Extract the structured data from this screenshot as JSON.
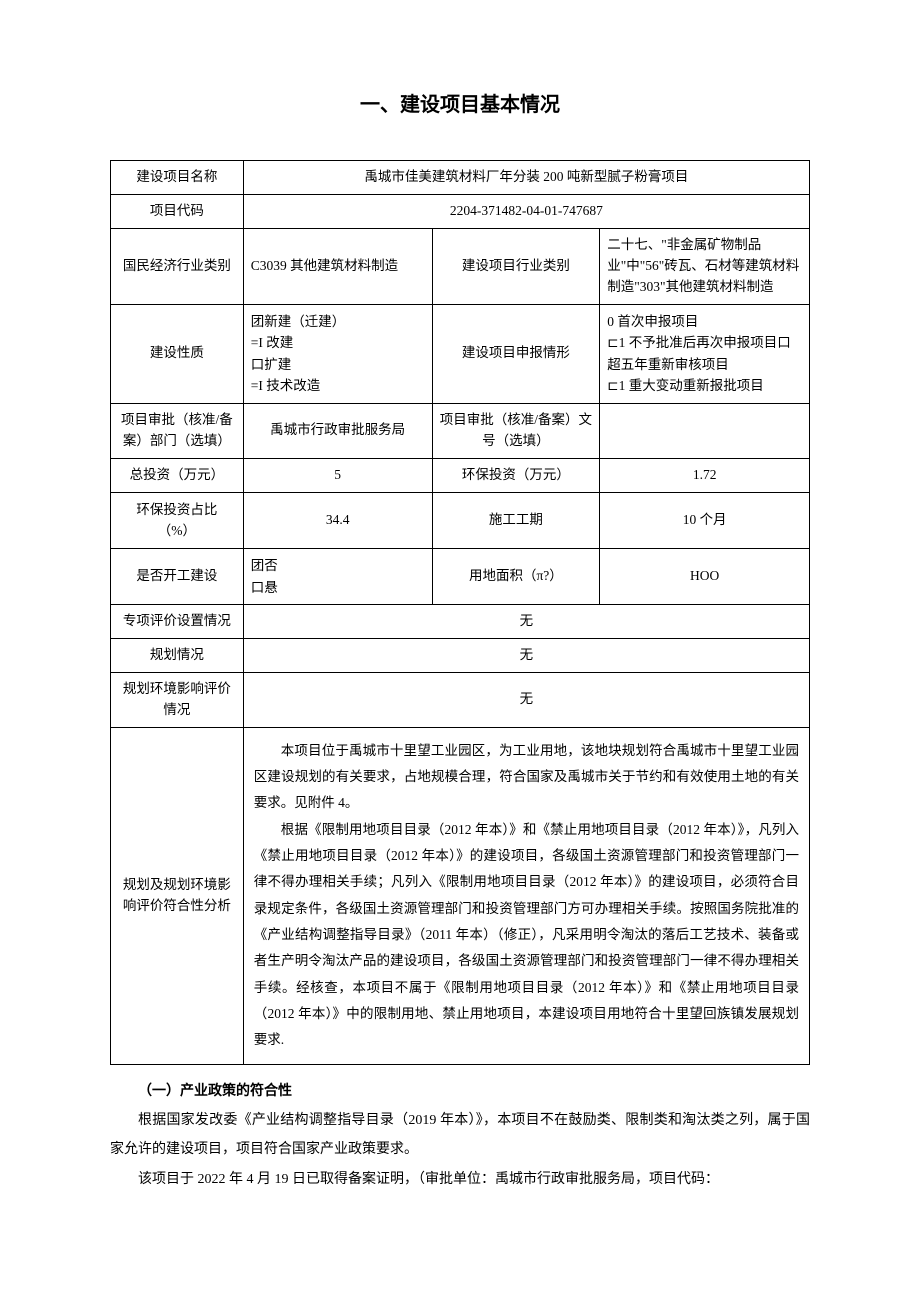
{
  "title": "一、建设项目基本情况",
  "rows": {
    "project_name": {
      "label": "建设项目名称",
      "value": "禹城市佳美建筑材料厂年分装 200 吨新型腻子粉膏项目"
    },
    "project_code": {
      "label": "项目代码",
      "value": "2204-371482-04-01-747687"
    },
    "industry_cat": {
      "label": "国民经济行业类别",
      "value": "C3039 其他建筑材料制造"
    },
    "proj_industry": {
      "label": "建设项目行业类别",
      "value": "二十七、\"非金属矿物制品业\"中\"56\"砖瓦、石材等建筑材料制造\"303\"其他建筑材料制造"
    },
    "build_nature": {
      "label": "建设性质",
      "value": "团新建（迁建）\n=I 改建\n口扩建\n=I 技术改造"
    },
    "declare_type": {
      "label": "建设项目申报情形",
      "value": "0 首次申报项目\n⊏1 不予批准后再次申报项目口超五年重新审核项目\n⊏1 重大变动重新报批项目"
    },
    "approval_dept": {
      "label": "项目审批（核准/备案）部门（选填）",
      "value": "禹城市行政审批服务局"
    },
    "approval_no": {
      "label": "项目审批（核准/备案）文号（选填）",
      "value": ""
    },
    "total_invest": {
      "label": "总投资（万元）",
      "value": "5"
    },
    "env_invest": {
      "label": "环保投资（万元）",
      "value": "1.72"
    },
    "env_ratio": {
      "label": "环保投资占比\n（%）",
      "value": "34.4"
    },
    "duration": {
      "label": "施工工期",
      "value": "10 个月"
    },
    "started": {
      "label": "是否开工建设",
      "value": "团否\n口悬"
    },
    "land_area": {
      "label": "用地面积（π?）",
      "value": "HOO"
    },
    "special_eval": {
      "label": "专项评价设置情况",
      "value": "无"
    },
    "planning": {
      "label": "规划情况",
      "value": "无"
    },
    "plan_env": {
      "label": "规划环境影响评价情况",
      "value": "无"
    },
    "analysis": {
      "label": "规划及规划环境影响评价符合性分析",
      "p1": "本项目位于禹城市十里望工业园区，为工业用地，该地块规划符合禹城市十里望工业园区建设规划的有关要求，占地规模合理，符合国家及禹城市关于节约和有效使用土地的有关要求。见附件 4。",
      "p2": "根据《限制用地项目目录（2012 年本）》和《禁止用地项目目录（2012 年本）》，凡列入《禁止用地项目目录（2012 年本）》的建设项目，各级国土资源管理部门和投资管理部门一律不得办理相关手续；凡列入《限制用地项目目录（2012 年本）》的建设项目，必须符合目录规定条件，各级国土资源管理部门和投资管理部门方可办理相关手续。按照国务院批准的《产业结构调整指导目录》（2011 年本）（修正），凡采用明令淘汰的落后工艺技术、装备或者生产明令淘汰产品的建设项目，各级国土资源管理部门和投资管理部门一律不得办理相关手续。经核查，本项目不属于《限制用地项目目录（2012 年本）》和《禁止用地项目目录（2012 年本）》中的限制用地、禁止用地项目，本建设项目用地符合十里望回族镇发展规划要求."
    }
  },
  "footer": {
    "heading": "（一）产业政策的符合性",
    "p1": "根据国家发改委《产业结构调整指导目录（2019 年本）》，本项目不在鼓励类、限制类和淘汰类之列，属于国家允许的建设项目，项目符合国家产业政策要求。",
    "p2": "该项目于 2022 年 4 月 19 日已取得备案证明，（审批单位：禹城市行政审批服务局，项目代码："
  }
}
